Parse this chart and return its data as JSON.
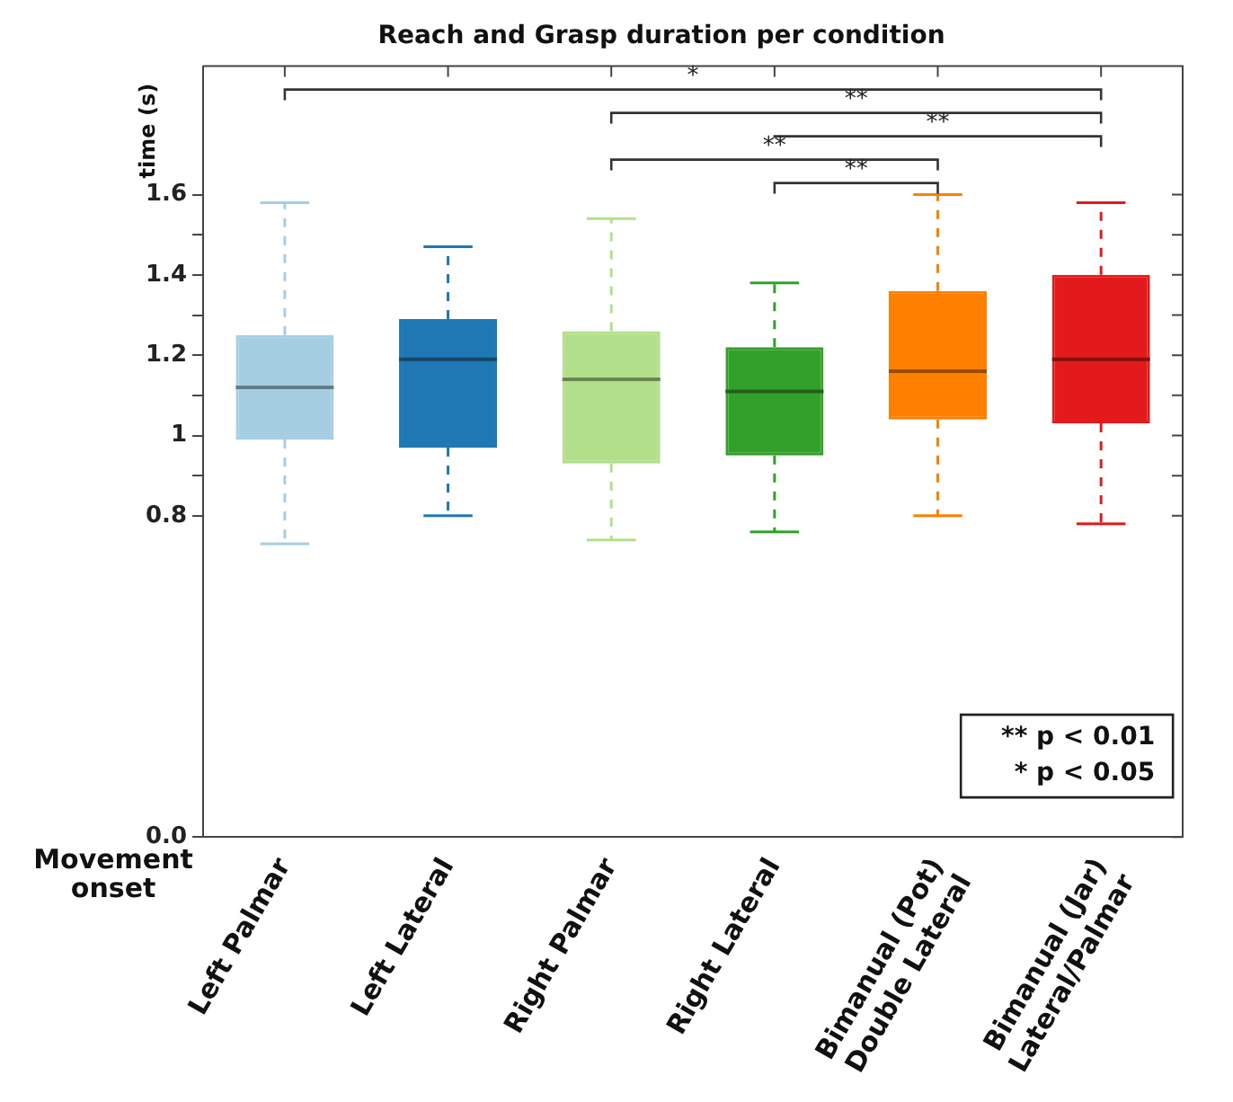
{
  "chart_data": {
    "type": "box",
    "title": "Reach and Grasp duration per condition",
    "ylabel": "time (s)",
    "categories": [
      "Left Palmar",
      "Left Lateral",
      "Right Palmar",
      "Right Lateral",
      "Bimanual (Pot) Double Lateral",
      "Bimanual (Jar) Lateral/Palmar"
    ],
    "boxes": [
      {
        "low": 0.73,
        "q1": 0.99,
        "median": 1.12,
        "q3": 1.25,
        "high": 1.58
      },
      {
        "low": 0.8,
        "q1": 0.97,
        "median": 1.19,
        "q3": 1.29,
        "high": 1.47
      },
      {
        "low": 0.74,
        "q1": 0.93,
        "median": 1.14,
        "q3": 1.26,
        "high": 1.54
      },
      {
        "low": 0.76,
        "q1": 0.95,
        "median": 1.11,
        "q3": 1.22,
        "high": 1.38
      },
      {
        "low": 0.8,
        "q1": 1.04,
        "median": 1.16,
        "q3": 1.36,
        "high": 1.6
      },
      {
        "low": 0.78,
        "q1": 1.03,
        "median": 1.19,
        "q3": 1.4,
        "high": 1.58
      }
    ],
    "colors": [
      "#a6cee3",
      "#1f78b4",
      "#b2df8a",
      "#33a02c",
      "#ff7f00",
      "#e31a1c"
    ],
    "ylim": [
      0,
      1.92
    ],
    "yticks": [
      {
        "value": 0,
        "label": "0.0"
      },
      0.8,
      {
        "value": 0.9,
        "label": null
      },
      1,
      {
        "value": 1.1,
        "label": null
      },
      1.2,
      {
        "value": 1.3,
        "label": null
      },
      1.4,
      {
        "value": 1.5,
        "label": null
      },
      1.6
    ],
    "grid": false,
    "legend": false,
    "annotations": [
      "*",
      "**",
      "**",
      "**",
      "**",
      "** p < 0.01",
      "* p < 0.05",
      "Movement onset"
    ]
  }
}
